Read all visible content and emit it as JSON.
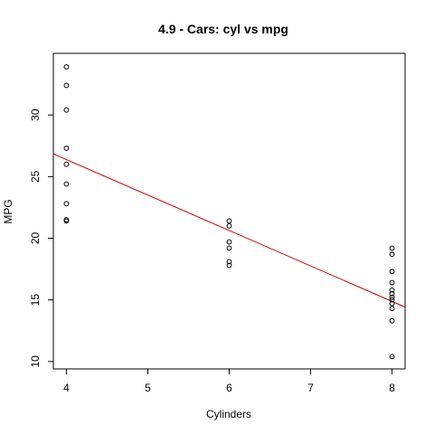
{
  "chart_data": {
    "type": "scatter",
    "title": "4.9 - Cars: cyl vs mpg",
    "xlabel": "Cylinders",
    "ylabel": "MPG",
    "xlim": [
      3.84,
      8.16
    ],
    "ylim": [
      9.4,
      35.0
    ],
    "x_ticks": [
      4,
      5,
      6,
      7,
      8
    ],
    "y_ticks": [
      10,
      15,
      20,
      25,
      30
    ],
    "grid": false,
    "point_style": "open-circle",
    "point_color": "#000000",
    "series": [
      {
        "points": [
          [
            4,
            33.9
          ],
          [
            4,
            32.4
          ],
          [
            4,
            30.4
          ],
          [
            4,
            27.3
          ],
          [
            4,
            26.0
          ],
          [
            4,
            24.4
          ],
          [
            4,
            22.8
          ],
          [
            4,
            21.5
          ],
          [
            4,
            21.4
          ],
          [
            6,
            21.4
          ],
          [
            6,
            21.0
          ],
          [
            6,
            19.7
          ],
          [
            6,
            19.2
          ],
          [
            6,
            18.1
          ],
          [
            6,
            17.8
          ],
          [
            8,
            19.2
          ],
          [
            8,
            18.7
          ],
          [
            8,
            17.3
          ],
          [
            8,
            16.4
          ],
          [
            8,
            15.8
          ],
          [
            8,
            15.5
          ],
          [
            8,
            15.2
          ],
          [
            8,
            15.0
          ],
          [
            8,
            14.7
          ],
          [
            8,
            14.3
          ],
          [
            8,
            13.3
          ],
          [
            8,
            10.4
          ]
        ]
      }
    ],
    "fit_line": {
      "intercept": 37.885,
      "slope": -2.876,
      "color": "#cc0000"
    }
  }
}
